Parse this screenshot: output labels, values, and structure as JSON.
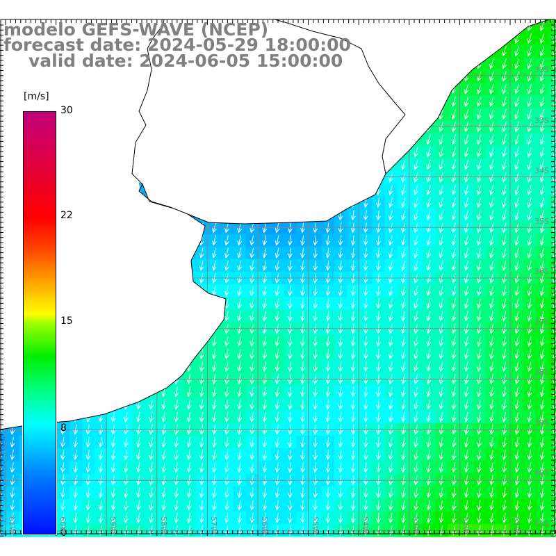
{
  "title": {
    "line1": "modelo GEFS-WAVE (NCEP)",
    "line2": "forecast date: 2024-05-29 18:00:00",
    "line3": "valid date: 2024-06-05 15:00:00"
  },
  "colorbar": {
    "unit": "[m/s]",
    "ticks": [
      "30",
      "22",
      "15",
      "8",
      "0"
    ],
    "range": [
      0,
      30
    ]
  },
  "lat_labels": [
    "32S",
    "33S",
    "34S",
    "35S",
    "36S",
    "37S",
    "38S",
    "39S",
    "40S",
    "41S"
  ],
  "lon_labels": [
    "61W",
    "60W",
    "59W",
    "58W",
    "57W",
    "56W",
    "55W",
    "54W",
    "53W",
    "52W",
    "51W"
  ],
  "field": {
    "variable": "wind speed",
    "direction": "mostly from north (southward flow)",
    "min_speed": 3,
    "max_speed": 12
  }
}
